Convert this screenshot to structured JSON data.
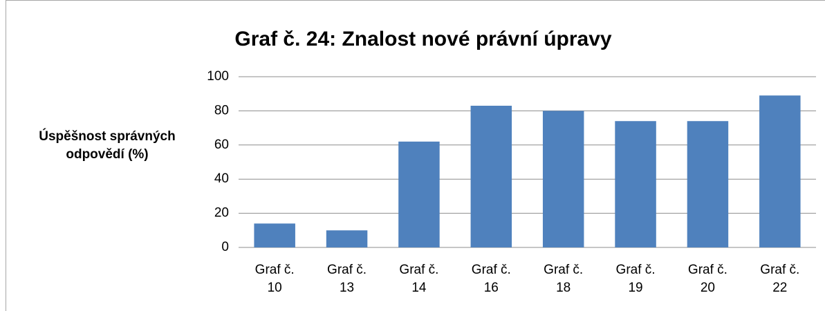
{
  "chart_data": {
    "type": "bar",
    "title": "Graf č. 24: Znalost nové právní úpravy",
    "y_label": "Úspěšnost správných odpovědí (%)",
    "categories": [
      "Graf č. 10",
      "Graf č. 13",
      "Graf č. 14",
      "Graf č. 16",
      "Graf č. 18",
      "Graf č. 19",
      "Graf č. 20",
      "Graf č. 22"
    ],
    "values": [
      14,
      10,
      62,
      83,
      80,
      74,
      74,
      89
    ],
    "color": "#4f81bd",
    "ylim": [
      0,
      100
    ],
    "yticks": [
      0,
      20,
      40,
      60,
      80,
      100
    ],
    "grid": true
  }
}
